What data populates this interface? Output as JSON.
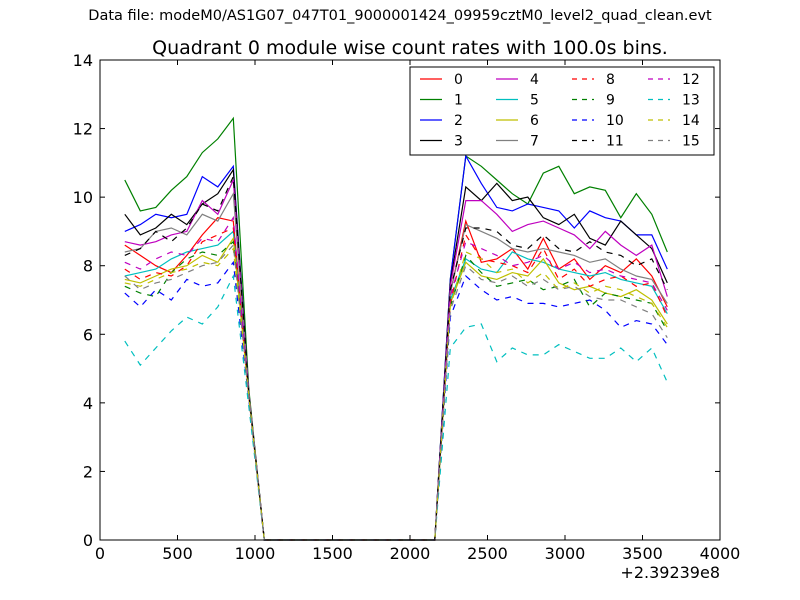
{
  "page": {
    "suptitle": "Data file: modeM0/AS1G07_047T01_9000001424_09959cztM0_level2_quad_clean.evt"
  },
  "chart_data": {
    "type": "line",
    "title": "Quadrant 0 module wise count rates with 100.0s bins.",
    "xlabel": "",
    "ylabel": "",
    "xlim": [
      0,
      4000
    ],
    "ylim": [
      0,
      14
    ],
    "x_offset_label": "+2.39239e8",
    "xticks": [
      0,
      500,
      1000,
      1500,
      2000,
      2500,
      3000,
      3500,
      4000
    ],
    "xtick_labels": [
      "0",
      "500",
      "1000",
      "1500",
      "2000",
      "2500",
      "3000",
      "3500",
      "4000"
    ],
    "yticks": [
      0,
      2,
      4,
      6,
      8,
      10,
      12,
      14
    ],
    "ytick_labels": [
      "0",
      "2",
      "4",
      "6",
      "8",
      "10",
      "12",
      "14"
    ],
    "grid": false,
    "legend_position": "top-right",
    "legend_columns": 4,
    "x": [
      160,
      260,
      360,
      460,
      560,
      660,
      760,
      860,
      960,
      1060,
      1160,
      1260,
      1360,
      1460,
      1560,
      1660,
      1760,
      1860,
      1960,
      2060,
      2160,
      2260,
      2360,
      2460,
      2560,
      2660,
      2760,
      2860,
      2960,
      3060,
      3160,
      3260,
      3360,
      3460,
      3560,
      3660
    ],
    "series": [
      {
        "name": "0",
        "color": "#ff0000",
        "dash": "solid",
        "values": [
          8.6,
          8.3,
          8.0,
          7.8,
          8.3,
          8.9,
          9.4,
          9.3,
          4.2,
          0,
          0,
          0,
          0,
          0,
          0,
          0,
          0,
          0,
          0,
          0,
          0,
          7.2,
          9.3,
          8.1,
          8.2,
          8.5,
          7.9,
          8.8,
          7.9,
          8.2,
          7.6,
          8.0,
          7.8,
          8.2,
          7.7,
          6.8
        ]
      },
      {
        "name": "1",
        "color": "#008000",
        "dash": "solid",
        "values": [
          10.5,
          9.6,
          9.7,
          10.2,
          10.6,
          11.3,
          11.7,
          12.3,
          4.4,
          0,
          0,
          0,
          0,
          0,
          0,
          0,
          0,
          0,
          0,
          0,
          0,
          7.6,
          11.2,
          10.9,
          10.5,
          10.1,
          9.8,
          10.7,
          10.9,
          10.1,
          10.3,
          10.2,
          9.4,
          10.1,
          9.5,
          8.4
        ]
      },
      {
        "name": "2",
        "color": "#0000ff",
        "dash": "solid",
        "values": [
          9.0,
          9.2,
          9.5,
          9.4,
          9.5,
          10.6,
          10.3,
          10.9,
          4.3,
          0,
          0,
          0,
          0,
          0,
          0,
          0,
          0,
          0,
          0,
          0,
          0,
          7.6,
          11.2,
          10.4,
          9.7,
          9.6,
          9.8,
          9.7,
          9.6,
          9.1,
          9.6,
          9.4,
          9.3,
          8.9,
          8.9,
          7.9
        ]
      },
      {
        "name": "3",
        "color": "#000000",
        "dash": "solid",
        "values": [
          9.5,
          8.9,
          9.1,
          9.5,
          9.2,
          9.8,
          10.1,
          10.8,
          4.3,
          0,
          0,
          0,
          0,
          0,
          0,
          0,
          0,
          0,
          0,
          0,
          0,
          7.5,
          10.3,
          9.9,
          10.4,
          9.9,
          10.0,
          9.4,
          9.2,
          9.5,
          8.8,
          8.6,
          9.3,
          8.9,
          8.5,
          7.5
        ]
      },
      {
        "name": "4",
        "color": "#bf00bf",
        "dash": "solid",
        "values": [
          8.7,
          8.6,
          8.7,
          8.9,
          9.0,
          9.9,
          9.5,
          10.5,
          4.3,
          0,
          0,
          0,
          0,
          0,
          0,
          0,
          0,
          0,
          0,
          0,
          0,
          7.4,
          9.9,
          9.9,
          9.5,
          9.0,
          9.2,
          9.3,
          9.1,
          8.9,
          8.5,
          9.0,
          8.6,
          8.3,
          8.6,
          7.1
        ]
      },
      {
        "name": "5",
        "color": "#00bfbf",
        "dash": "solid",
        "values": [
          7.7,
          7.8,
          7.9,
          8.2,
          8.4,
          8.5,
          8.6,
          9.0,
          4.2,
          0,
          0,
          0,
          0,
          0,
          0,
          0,
          0,
          0,
          0,
          0,
          0,
          7.0,
          8.2,
          7.9,
          7.8,
          8.4,
          8.2,
          8.1,
          7.9,
          7.8,
          7.7,
          7.8,
          7.6,
          7.5,
          7.4,
          6.6
        ]
      },
      {
        "name": "6",
        "color": "#bfbf00",
        "dash": "solid",
        "values": [
          7.6,
          7.5,
          7.7,
          7.9,
          8.0,
          8.3,
          8.1,
          8.8,
          4.2,
          0,
          0,
          0,
          0,
          0,
          0,
          0,
          0,
          0,
          0,
          0,
          0,
          6.9,
          8.1,
          7.7,
          7.6,
          7.8,
          7.7,
          8.2,
          7.5,
          7.3,
          7.4,
          7.2,
          7.1,
          7.3,
          7.0,
          6.3
        ]
      },
      {
        "name": "7",
        "color": "#808080",
        "dash": "solid",
        "values": [
          8.4,
          8.5,
          9.0,
          9.1,
          8.9,
          9.5,
          9.3,
          10.1,
          4.3,
          0,
          0,
          0,
          0,
          0,
          0,
          0,
          0,
          0,
          0,
          0,
          0,
          7.2,
          9.2,
          9.0,
          8.8,
          8.5,
          8.4,
          8.5,
          8.4,
          8.3,
          8.1,
          8.2,
          7.9,
          7.7,
          7.6,
          6.9
        ]
      },
      {
        "name": "8",
        "color": "#ff0000",
        "dash": "dashed",
        "values": [
          7.9,
          7.6,
          7.8,
          7.7,
          8.0,
          8.7,
          8.9,
          9.1,
          4.2,
          0,
          0,
          0,
          0,
          0,
          0,
          0,
          0,
          0,
          0,
          0,
          0,
          6.9,
          8.9,
          8.2,
          8.1,
          8.0,
          7.8,
          8.5,
          7.6,
          7.9,
          7.4,
          7.6,
          7.7,
          7.4,
          7.5,
          6.5
        ]
      },
      {
        "name": "9",
        "color": "#008000",
        "dash": "dashed",
        "values": [
          7.4,
          7.2,
          7.1,
          7.8,
          8.2,
          8.4,
          8.3,
          8.7,
          4.2,
          0,
          0,
          0,
          0,
          0,
          0,
          0,
          0,
          0,
          0,
          0,
          0,
          6.8,
          8.3,
          7.8,
          7.4,
          7.5,
          7.6,
          7.3,
          7.4,
          7.6,
          6.8,
          7.2,
          7.1,
          7.0,
          6.9,
          6.1
        ]
      },
      {
        "name": "10",
        "color": "#0000ff",
        "dash": "dashed",
        "values": [
          7.2,
          6.8,
          7.3,
          7.0,
          7.6,
          7.4,
          7.5,
          8.1,
          4.1,
          0,
          0,
          0,
          0,
          0,
          0,
          0,
          0,
          0,
          0,
          0,
          0,
          6.5,
          7.7,
          7.3,
          7.0,
          7.1,
          6.9,
          6.9,
          6.8,
          6.9,
          7.0,
          6.7,
          6.2,
          6.4,
          6.3,
          5.7
        ]
      },
      {
        "name": "11",
        "color": "#000000",
        "dash": "dashed",
        "values": [
          8.3,
          8.5,
          9.0,
          8.7,
          9.1,
          9.8,
          9.6,
          10.6,
          4.3,
          0,
          0,
          0,
          0,
          0,
          0,
          0,
          0,
          0,
          0,
          0,
          0,
          7.3,
          9.1,
          9.1,
          9.0,
          8.6,
          8.5,
          8.9,
          8.5,
          8.4,
          8.7,
          8.4,
          8.3,
          8.0,
          8.2,
          7.3
        ]
      },
      {
        "name": "12",
        "color": "#bf00bf",
        "dash": "dashed",
        "values": [
          8.1,
          7.9,
          8.2,
          8.4,
          8.3,
          8.8,
          8.7,
          9.4,
          4.2,
          0,
          0,
          0,
          0,
          0,
          0,
          0,
          0,
          0,
          0,
          0,
          0,
          7.1,
          8.7,
          8.5,
          8.3,
          8.0,
          8.1,
          8.3,
          7.9,
          8.1,
          7.8,
          7.9,
          7.7,
          7.6,
          7.5,
          6.7
        ]
      },
      {
        "name": "13",
        "color": "#00bfbf",
        "dash": "dashed",
        "values": [
          5.8,
          5.1,
          5.6,
          6.1,
          6.5,
          6.3,
          6.8,
          7.7,
          3.9,
          0,
          0,
          0,
          0,
          0,
          0,
          0,
          0,
          0,
          0,
          0,
          0,
          5.6,
          6.2,
          6.3,
          5.2,
          5.6,
          5.4,
          5.4,
          5.7,
          5.5,
          5.3,
          5.3,
          5.6,
          5.2,
          5.6,
          4.6
        ]
      },
      {
        "name": "14",
        "color": "#bfbf00",
        "dash": "dashed",
        "values": [
          7.5,
          7.4,
          7.6,
          7.8,
          7.9,
          8.1,
          8.0,
          8.5,
          4.2,
          0,
          0,
          0,
          0,
          0,
          0,
          0,
          0,
          0,
          0,
          0,
          0,
          6.8,
          8.4,
          8.2,
          7.8,
          7.9,
          7.5,
          7.8,
          7.3,
          7.5,
          7.2,
          7.4,
          7.3,
          7.1,
          6.9,
          6.2
        ]
      },
      {
        "name": "15",
        "color": "#808080",
        "dash": "dashed",
        "values": [
          7.7,
          7.3,
          7.5,
          7.6,
          7.8,
          8.0,
          8.1,
          8.6,
          4.2,
          0,
          0,
          0,
          0,
          0,
          0,
          0,
          0,
          0,
          0,
          0,
          0,
          6.7,
          8.0,
          7.6,
          7.5,
          7.7,
          7.4,
          7.6,
          7.3,
          7.4,
          7.1,
          7.0,
          7.0,
          6.8,
          6.6,
          5.9
        ]
      }
    ]
  }
}
